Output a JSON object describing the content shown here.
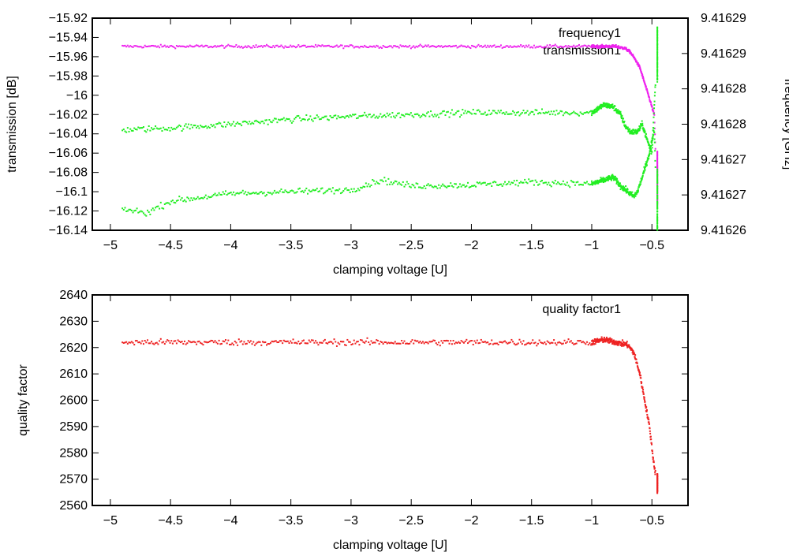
{
  "chart_data": [
    {
      "type": "scatter",
      "xlabel": "clamping voltage [U]",
      "ylabel": "transmission [dB]",
      "y2label": "frequency [GHz]",
      "xlim": [
        -5.15,
        -0.2
      ],
      "ylim": [
        -16.14,
        -15.92
      ],
      "y2lim": [
        9.41626,
        9.41629
      ],
      "x_ticks": [
        -5,
        -4.5,
        -4,
        -3.5,
        -3,
        -2.5,
        -2,
        -1.5,
        -1,
        -0.5
      ],
      "x_tick_labels": [
        "−5",
        "−4.5",
        "−4",
        "−3.5",
        "−3",
        "−2.5",
        "−2",
        "−1.5",
        "−1",
        "−0.5"
      ],
      "y_ticks": [
        -15.92,
        -15.94,
        -15.96,
        -15.98,
        -16,
        -16.02,
        -16.04,
        -16.06,
        -16.08,
        -16.1,
        -16.12,
        -16.14
      ],
      "y_tick_labels": [
        "−15.92",
        "−15.94",
        "−15.96",
        "−15.98",
        "−16",
        "−16.02",
        "−16.04",
        "−16.06",
        "−16.08",
        "−16.1",
        "−16.12",
        "−16.14"
      ],
      "y2_ticks": [
        9.41629,
        9.416285,
        9.41628,
        9.416275,
        9.41627,
        9.416265,
        9.41626
      ],
      "y2_tick_labels": [
        "9.41629",
        "9.41629",
        "9.41628",
        "9.41628",
        "9.41627",
        "9.41627",
        "9.41626"
      ],
      "legend": [
        "frequency1",
        "transmission1"
      ],
      "series": [
        {
          "name": "frequency1",
          "axis": "y2",
          "color": "#ee22ee",
          "points": [
            [
              -4.9,
              9.416286
            ],
            [
              -4.5,
              9.416286
            ],
            [
              -4.0,
              9.416286
            ],
            [
              -3.5,
              9.416286
            ],
            [
              -3.0,
              9.416286
            ],
            [
              -2.5,
              9.416286
            ],
            [
              -2.0,
              9.416286
            ],
            [
              -1.5,
              9.416286
            ],
            [
              -1.0,
              9.416286
            ],
            [
              -0.8,
              9.416286
            ],
            [
              -0.72,
              9.4162857
            ],
            [
              -0.68,
              9.4162852
            ],
            [
              -0.64,
              9.4162842
            ],
            [
              -0.6,
              9.416283
            ],
            [
              -0.56,
              9.4162808
            ],
            [
              -0.52,
              9.4162786
            ],
            [
              -0.48,
              9.4162763
            ],
            [
              -0.455,
              9.4162635
            ]
          ]
        },
        {
          "name": "transmission1 (upper)",
          "axis": "y",
          "color": "#22ee22",
          "points": [
            [
              -4.9,
              -16.036
            ],
            [
              -4.5,
              -16.034
            ],
            [
              -4.0,
              -16.03
            ],
            [
              -3.5,
              -16.025
            ],
            [
              -3.0,
              -16.022
            ],
            [
              -2.5,
              -16.02
            ],
            [
              -2.0,
              -16.018
            ],
            [
              -1.5,
              -16.018
            ],
            [
              -1.0,
              -16.018
            ],
            [
              -0.9,
              -16.01
            ],
            [
              -0.82,
              -16.012
            ],
            [
              -0.76,
              -16.02
            ],
            [
              -0.72,
              -16.032
            ],
            [
              -0.68,
              -16.038
            ],
            [
              -0.62,
              -16.038
            ],
            [
              -0.58,
              -16.03
            ],
            [
              -0.54,
              -16.046
            ],
            [
              -0.5,
              -16.06
            ],
            [
              -0.47,
              -15.985
            ],
            [
              -0.455,
              -15.93
            ]
          ]
        },
        {
          "name": "transmission1 (lower)",
          "axis": "y",
          "color": "#22ee22",
          "points": [
            [
              -4.9,
              -16.118
            ],
            [
              -4.7,
              -16.122
            ],
            [
              -4.5,
              -16.11
            ],
            [
              -4.0,
              -16.102
            ],
            [
              -3.5,
              -16.1
            ],
            [
              -3.0,
              -16.098
            ],
            [
              -2.75,
              -16.088
            ],
            [
              -2.5,
              -16.094
            ],
            [
              -2.0,
              -16.093
            ],
            [
              -1.5,
              -16.09
            ],
            [
              -1.0,
              -16.092
            ],
            [
              -0.9,
              -16.088
            ],
            [
              -0.82,
              -16.085
            ],
            [
              -0.76,
              -16.094
            ],
            [
              -0.7,
              -16.1
            ],
            [
              -0.65,
              -16.105
            ],
            [
              -0.62,
              -16.1
            ],
            [
              -0.58,
              -16.085
            ],
            [
              -0.52,
              -16.06
            ],
            [
              -0.48,
              -16.035
            ],
            [
              -0.455,
              -16.14
            ]
          ]
        }
      ]
    },
    {
      "type": "scatter",
      "xlabel": "clamping voltage [U]",
      "ylabel": "quality factor",
      "xlim": [
        -5.15,
        -0.2
      ],
      "ylim": [
        2560,
        2640
      ],
      "x_ticks": [
        -5,
        -4.5,
        -4,
        -3.5,
        -3,
        -2.5,
        -2,
        -1.5,
        -1,
        -0.5
      ],
      "x_tick_labels": [
        "−5",
        "−4.5",
        "−4",
        "−3.5",
        "−3",
        "−2.5",
        "−2",
        "−1.5",
        "−1",
        "−0.5"
      ],
      "y_ticks": [
        2640,
        2630,
        2620,
        2610,
        2600,
        2590,
        2580,
        2570,
        2560
      ],
      "y_tick_labels": [
        "2640",
        "2630",
        "2620",
        "2610",
        "2600",
        "2590",
        "2580",
        "2570",
        "2560"
      ],
      "legend": [
        "quality factor1"
      ],
      "series": [
        {
          "name": "quality factor1",
          "color": "#ee2222",
          "points": [
            [
              -4.9,
              2622
            ],
            [
              -4.5,
              2622
            ],
            [
              -4.0,
              2622
            ],
            [
              -3.5,
              2622
            ],
            [
              -3.0,
              2622
            ],
            [
              -2.5,
              2622
            ],
            [
              -2.0,
              2622
            ],
            [
              -1.5,
              2622
            ],
            [
              -1.0,
              2622
            ],
            [
              -0.9,
              2623
            ],
            [
              -0.8,
              2622
            ],
            [
              -0.7,
              2621
            ],
            [
              -0.65,
              2618
            ],
            [
              -0.6,
              2610
            ],
            [
              -0.56,
              2600
            ],
            [
              -0.52,
              2590
            ],
            [
              -0.49,
              2578
            ],
            [
              -0.47,
              2572
            ],
            [
              -0.455,
              2565
            ]
          ]
        }
      ]
    }
  ]
}
